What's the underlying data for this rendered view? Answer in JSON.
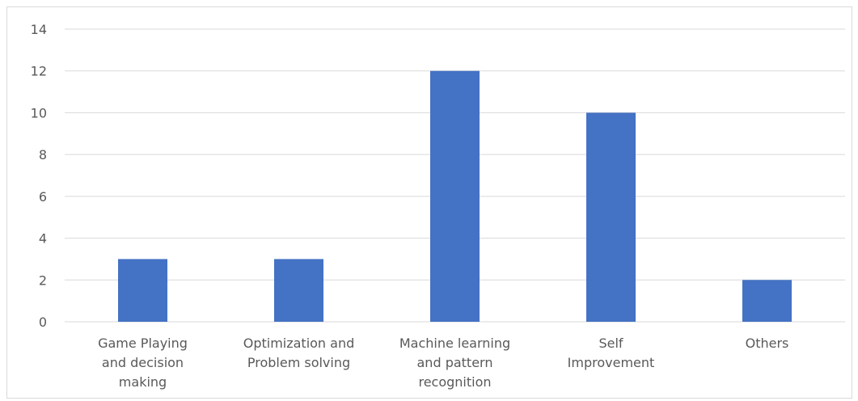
{
  "chart_data": {
    "type": "bar",
    "title": "",
    "xlabel": "",
    "ylabel": "",
    "categories": [
      [
        "Game Playing",
        "and decision",
        "making"
      ],
      [
        "Optimization and",
        "Problem solving"
      ],
      [
        "Machine learning",
        "and pattern",
        "recognition"
      ],
      [
        "Self",
        "Improvement"
      ],
      [
        "Others"
      ]
    ],
    "values": [
      3,
      3,
      12,
      10,
      2
    ],
    "ylim": [
      0,
      14
    ],
    "yticks": [
      0,
      2,
      4,
      6,
      8,
      10,
      12,
      14
    ],
    "grid": true,
    "legend": "none",
    "colors": {
      "bar": "#4472C4",
      "grid": "#d9d9d9",
      "text": "#595959"
    }
  }
}
